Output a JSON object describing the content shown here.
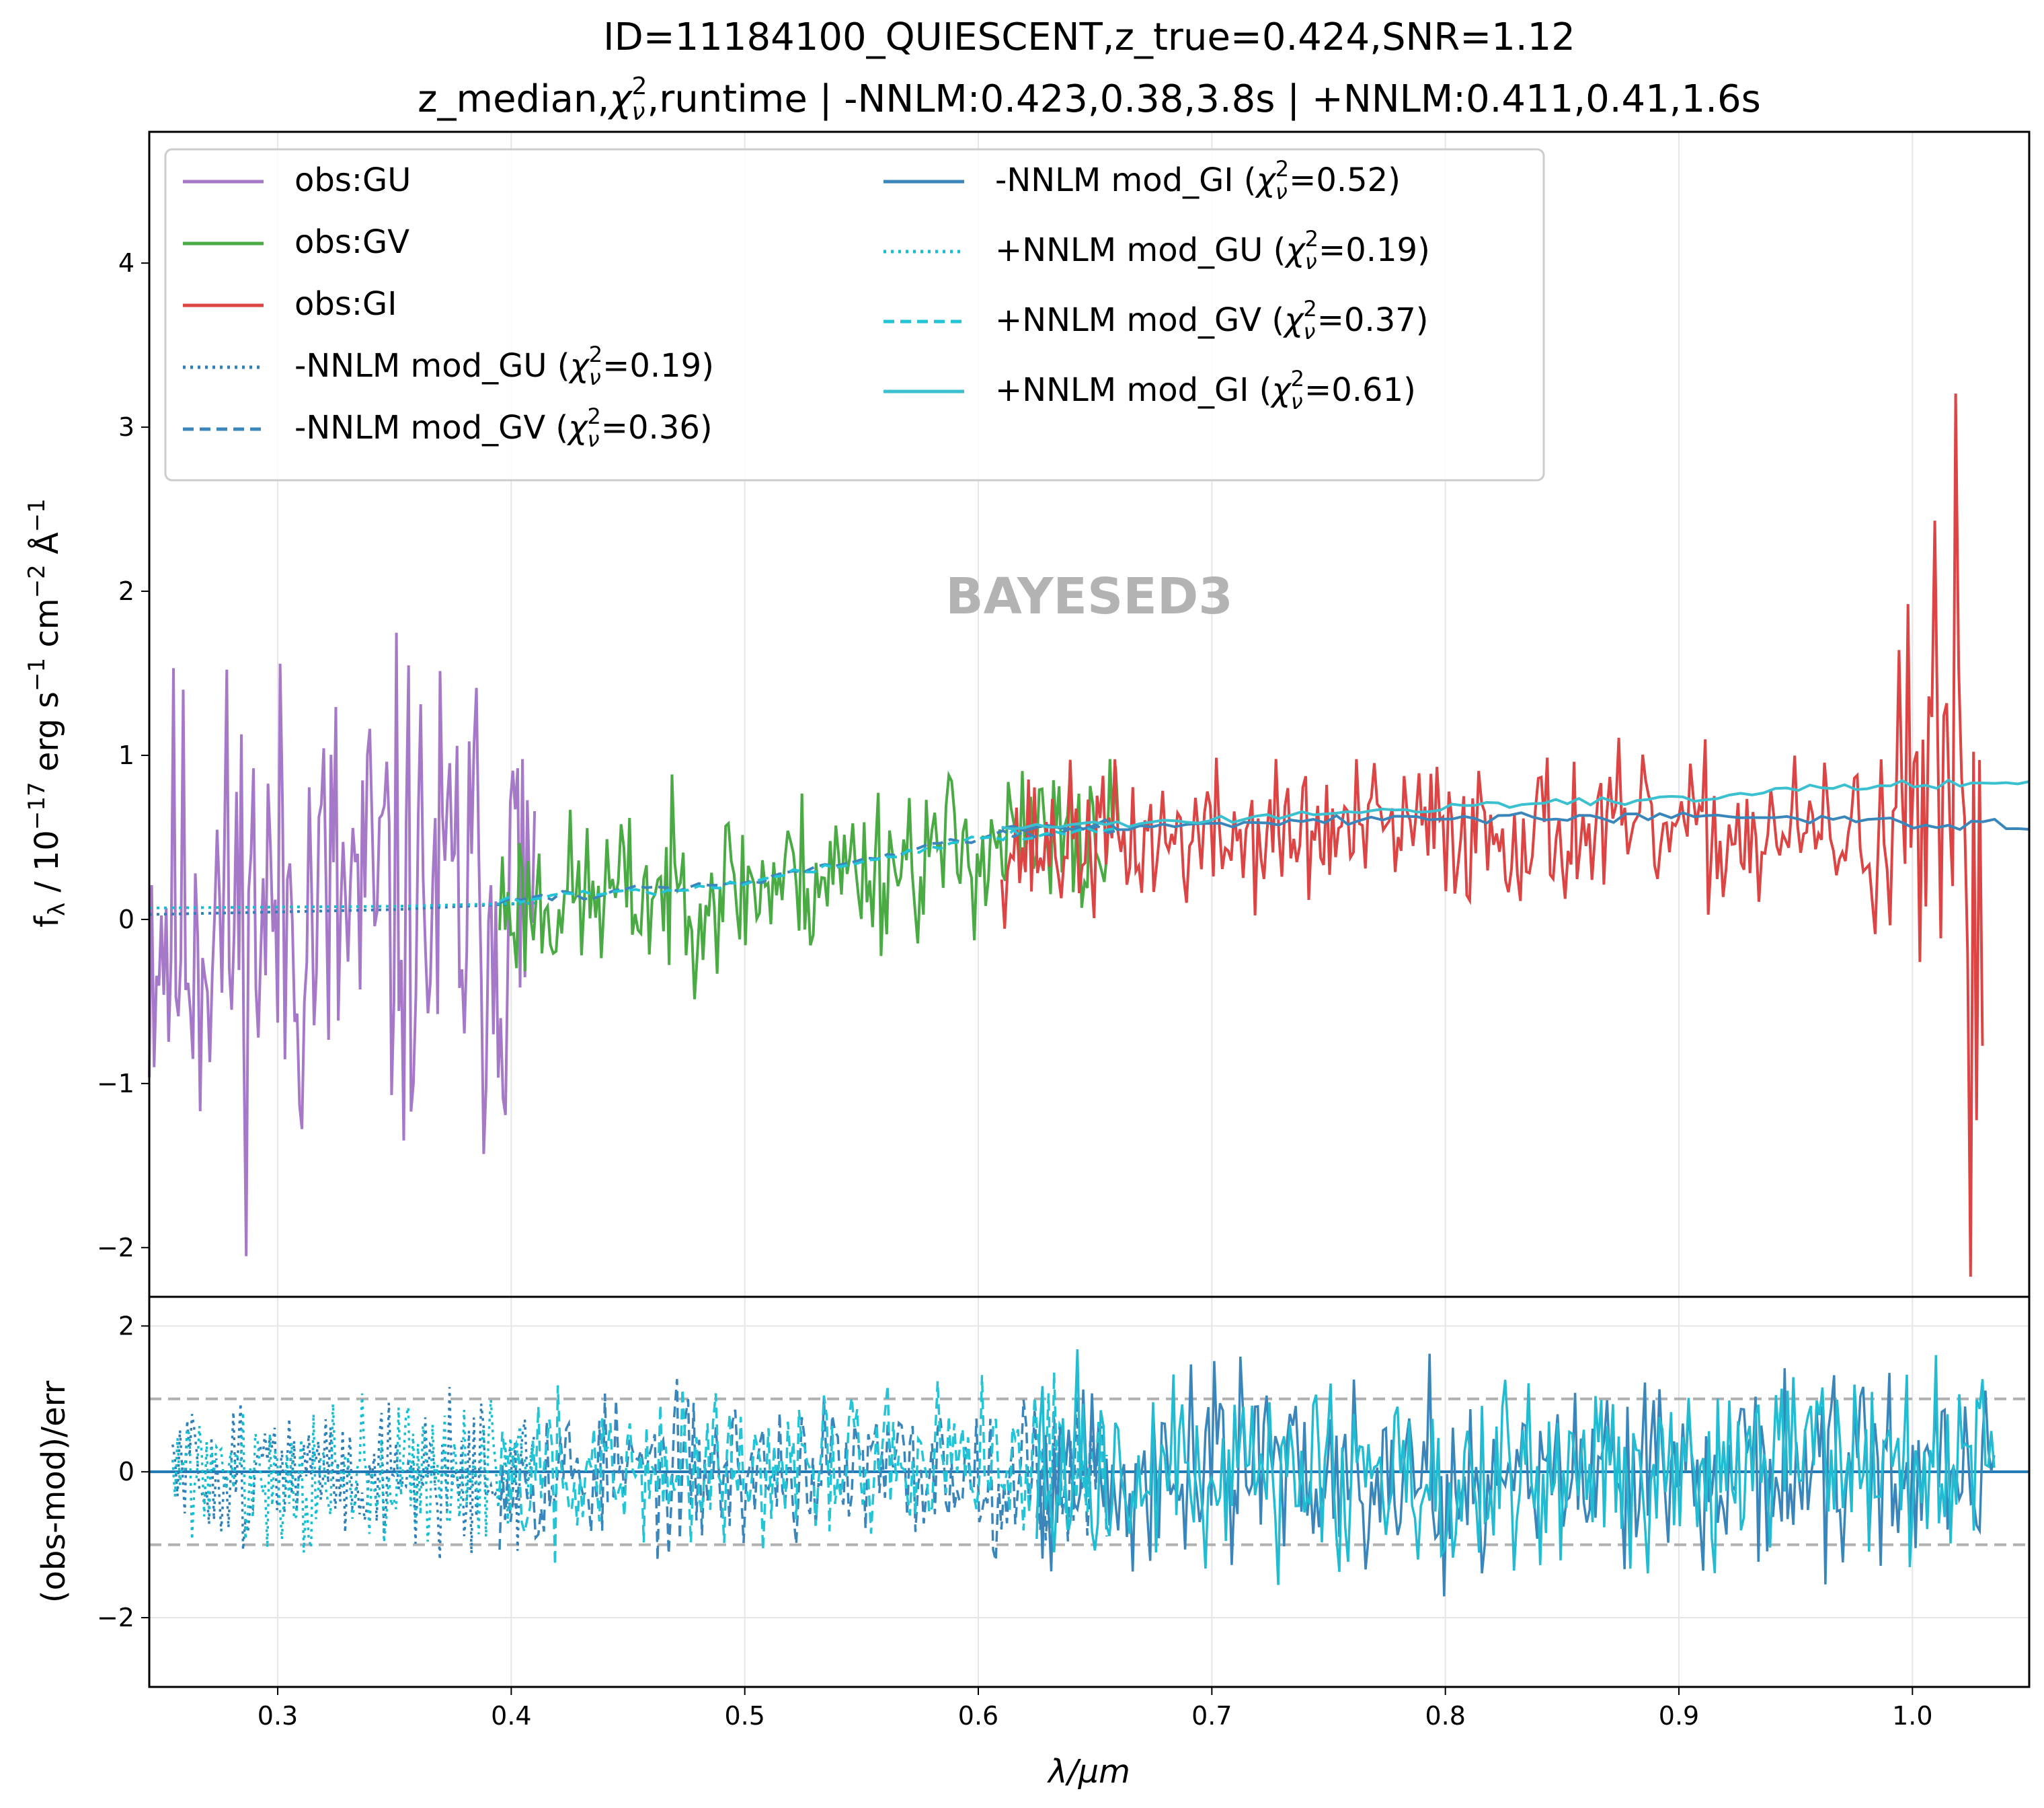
{
  "chart_data": {
    "type": "line",
    "title": "ID=11184100_QUIESCENT,z_true=0.424,SNR=1.12",
    "subtitle_parts": {
      "lead": "z_median,",
      "chi": "χ",
      "sub": "ν",
      "sup": "2",
      "rest": ",runtime | -NNLM:0.423,0.38,3.8s | +NNLM:0.411,0.41,1.6s"
    },
    "watermark": "BAYESED3",
    "xlabel": "λ/μm",
    "xlim": [
      0.245,
      1.05
    ],
    "x_ticks": [
      "0.3",
      "0.4",
      "0.5",
      "0.6",
      "0.7",
      "0.8",
      "0.9",
      "1.0"
    ],
    "top_panel": {
      "ylabel_parts": {
        "f": "f",
        "sub": "λ",
        "a": " / 10",
        "e1": "−17",
        "b": " erg s",
        "e2": "−1",
        "c": " cm",
        "e3": "−2",
        "d": " Å",
        "e4": "−1"
      },
      "ylim": [
        -2.3,
        4.8
      ],
      "y_ticks": [
        "−2",
        "−1",
        "0",
        "1",
        "2",
        "3",
        "4"
      ],
      "series": [
        {
          "name": "obs:GU",
          "color": "#a678c8",
          "style": "solid",
          "x_range": [
            0.245,
            0.41
          ],
          "trend": [
            [
              0.245,
              0.0
            ],
            [
              0.3,
              0.04
            ],
            [
              0.41,
              0.1
            ]
          ],
          "noise": 0.95,
          "seed": 11,
          "points": 160
        },
        {
          "name": "obs:GV",
          "color": "#4aaa44",
          "style": "solid",
          "x_range": [
            0.395,
            0.66
          ],
          "trend": [
            [
              0.395,
              0.1
            ],
            [
              0.5,
              0.2
            ],
            [
              0.6,
              0.45
            ],
            [
              0.66,
              0.5
            ]
          ],
          "noise": 0.32,
          "seed": 23,
          "points": 220
        },
        {
          "name": "obs:GI",
          "color": "#dd4444",
          "style": "solid",
          "x_range": [
            0.61,
            1.03
          ],
          "trend": [
            [
              0.61,
              0.45
            ],
            [
              0.8,
              0.55
            ],
            [
              0.98,
              0.5
            ],
            [
              1.03,
              0.4
            ]
          ],
          "noise": 0.28,
          "seed": 37,
          "points": 330
        },
        {
          "name": "-NNLM mod_GU",
          "chi2": "0.19",
          "color": "#2f7fb8",
          "style": "dotted",
          "x_range": [
            0.245,
            0.41
          ],
          "trend": [
            [
              0.245,
              0.03
            ],
            [
              0.35,
              0.06
            ],
            [
              0.41,
              0.1
            ]
          ],
          "noise": 0.0,
          "seed": 1,
          "points": 40
        },
        {
          "name": "-NNLM mod_GV",
          "chi2": "0.36",
          "color": "#3a86bb",
          "style": "dashed",
          "x_range": [
            0.395,
            0.66
          ],
          "trend": [
            [
              0.395,
              0.12
            ],
            [
              0.5,
              0.22
            ],
            [
              0.6,
              0.5
            ],
            [
              0.66,
              0.55
            ]
          ],
          "noise": 0.02,
          "seed": 2,
          "points": 60
        },
        {
          "name": "-NNLM mod_GI",
          "chi2": "0.52",
          "color": "#3a86bb",
          "style": "solid",
          "x_range": [
            0.61,
            1.05
          ],
          "trend": [
            [
              0.61,
              0.55
            ],
            [
              0.8,
              0.62
            ],
            [
              0.95,
              0.62
            ],
            [
              1.05,
              0.56
            ]
          ],
          "noise": 0.02,
          "seed": 3,
          "points": 90
        },
        {
          "name": "+NNLM mod_GU",
          "chi2": "0.19",
          "color": "#17becf",
          "style": "dotted",
          "x_range": [
            0.245,
            0.41
          ],
          "trend": [
            [
              0.245,
              0.07
            ],
            [
              0.35,
              0.08
            ],
            [
              0.41,
              0.1
            ]
          ],
          "noise": 0.0,
          "seed": 4,
          "points": 40
        },
        {
          "name": "+NNLM mod_GV",
          "chi2": "0.37",
          "color": "#22c4d6",
          "style": "dashed",
          "x_range": [
            0.395,
            0.66
          ],
          "trend": [
            [
              0.395,
              0.12
            ],
            [
              0.5,
              0.22
            ],
            [
              0.6,
              0.5
            ],
            [
              0.66,
              0.55
            ]
          ],
          "noise": 0.02,
          "seed": 5,
          "points": 60
        },
        {
          "name": "+NNLM mod_GI",
          "chi2": "0.61",
          "color": "#3bc0cf",
          "style": "solid",
          "x_range": [
            0.61,
            1.05
          ],
          "trend": [
            [
              0.61,
              0.55
            ],
            [
              0.8,
              0.68
            ],
            [
              0.92,
              0.75
            ],
            [
              0.94,
              0.8
            ],
            [
              1.05,
              0.83
            ]
          ],
          "noise": 0.015,
          "seed": 6,
          "points": 90
        }
      ]
    },
    "bottom_panel": {
      "ylabel": "(obs-mod)/err",
      "ylim": [
        -2.95,
        2.4
      ],
      "y_ticks": [
        "−2",
        "0",
        "2"
      ],
      "reference_lines": [
        1,
        -1,
        0
      ],
      "series": [
        {
          "name": "-NNLM resid_GU",
          "color": "#2f7fb8",
          "style": "dotted",
          "x_range": [
            0.255,
            0.41
          ],
          "noise": 0.55,
          "seed": 51,
          "points": 150
        },
        {
          "name": "+NNLM resid_GU",
          "color": "#17becf",
          "style": "dotted",
          "x_range": [
            0.255,
            0.41
          ],
          "noise": 0.55,
          "seed": 52,
          "points": 150
        },
        {
          "name": "-NNLM resid_GV",
          "color": "#3a86bb",
          "style": "dashed",
          "x_range": [
            0.395,
            0.655
          ],
          "noise": 0.6,
          "seed": 53,
          "points": 220
        },
        {
          "name": "+NNLM resid_GV",
          "color": "#22c4d6",
          "style": "dashed",
          "x_range": [
            0.395,
            0.655
          ],
          "noise": 0.6,
          "seed": 54,
          "points": 220
        },
        {
          "name": "-NNLM resid_GI",
          "color": "#3a86bb",
          "style": "solid",
          "x_range": [
            0.625,
            1.035
          ],
          "noise": 0.75,
          "seed": 55,
          "points": 330
        },
        {
          "name": "+NNLM resid_GI",
          "color": "#22bcd2",
          "style": "solid",
          "x_range": [
            0.625,
            1.035
          ],
          "noise": 0.75,
          "seed": 56,
          "points": 330
        }
      ]
    },
    "legend": {
      "placement": "upper-left",
      "columns": 2,
      "chi_symbol": "χ",
      "chi_sub": "ν",
      "chi_sup": "2",
      "eq_prefix": "=",
      "close": ")"
    }
  }
}
